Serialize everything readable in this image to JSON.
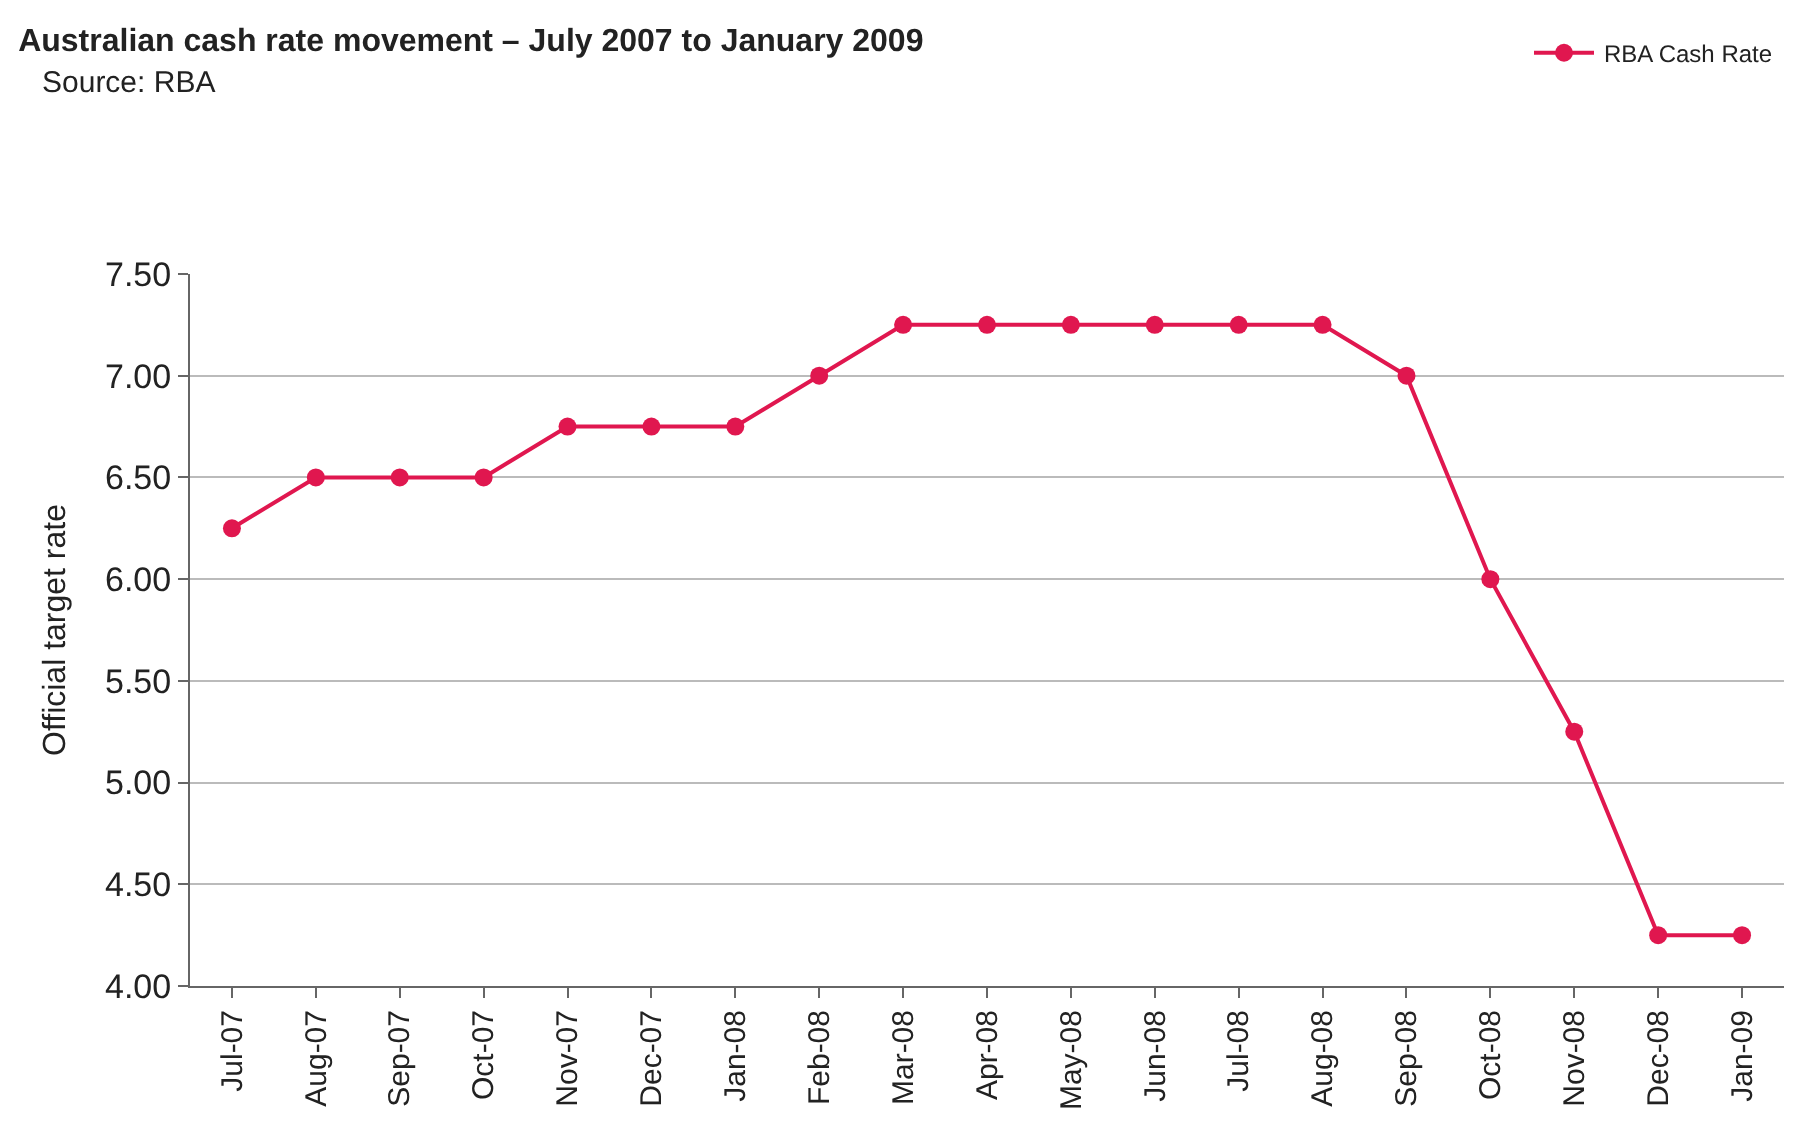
{
  "chart_data": {
    "type": "line",
    "title": "Australian cash rate movement – July 2007 to January 2009",
    "annotations": [
      "Source: RBA"
    ],
    "ylabel": "Official target rate",
    "categories": [
      "Jul-07",
      "Aug-07",
      "Sep-07",
      "Oct-07",
      "Nov-07",
      "Dec-07",
      "Jan-08",
      "Feb-08",
      "Mar-08",
      "Apr-08",
      "May-08",
      "Jun-08",
      "Jul-08",
      "Aug-08",
      "Sep-08",
      "Oct-08",
      "Nov-08",
      "Dec-08",
      "Jan-09"
    ],
    "series": [
      {
        "name": "RBA Cash Rate",
        "color": "#e0174f",
        "values": [
          6.25,
          6.5,
          6.5,
          6.5,
          6.75,
          6.75,
          6.75,
          7.0,
          7.25,
          7.25,
          7.25,
          7.25,
          7.25,
          7.25,
          7.0,
          6.0,
          5.25,
          4.25,
          4.25
        ]
      }
    ],
    "ylim": [
      4.0,
      7.5
    ],
    "yticks": [
      {
        "value": 4.0,
        "label": "4.00"
      },
      {
        "value": 4.5,
        "label": "4.50"
      },
      {
        "value": 5.0,
        "label": "5.00"
      },
      {
        "value": 5.5,
        "label": "5.50"
      },
      {
        "value": 6.0,
        "label": "6.00"
      },
      {
        "value": 6.5,
        "label": "6.50"
      },
      {
        "value": 7.0,
        "label": "7.00"
      },
      {
        "value": 7.5,
        "label": "7.50"
      }
    ],
    "grid": "y",
    "legend": "top right",
    "marker": "circle",
    "line_style": "solid"
  }
}
